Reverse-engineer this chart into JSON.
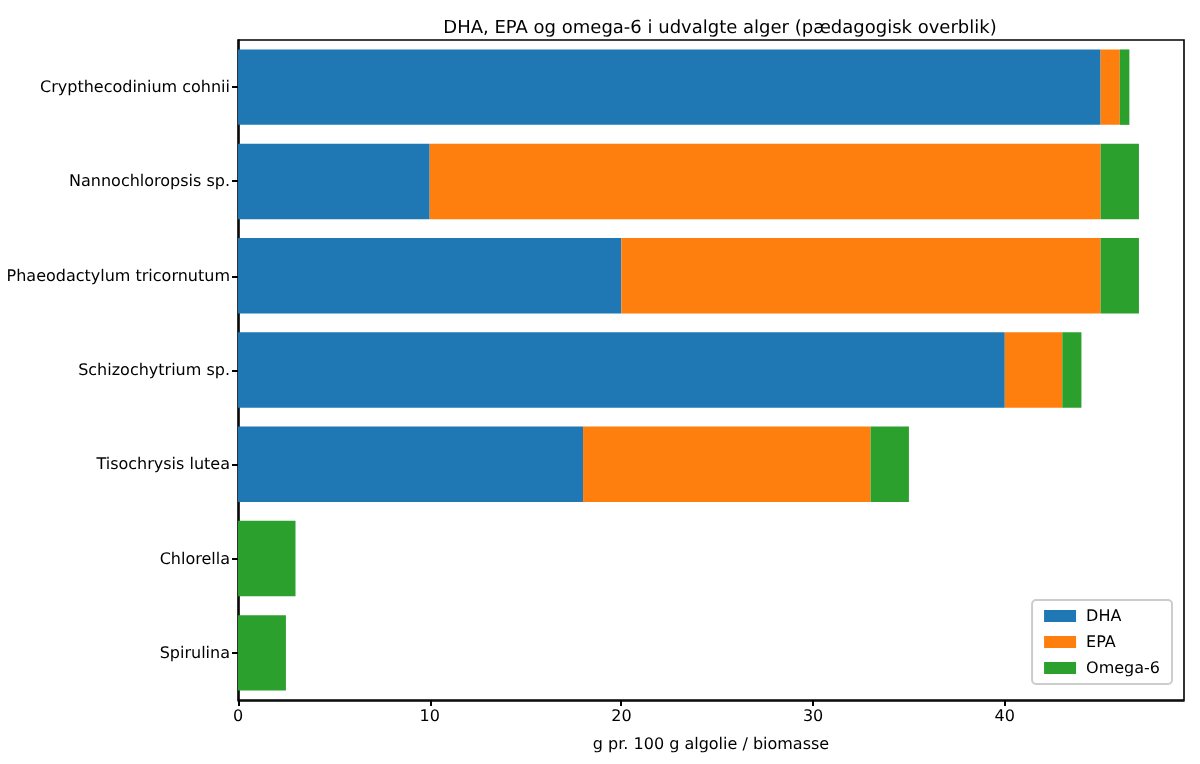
{
  "chart_data": {
    "type": "bar",
    "orientation": "horizontal",
    "stacked": true,
    "title": "DHA, EPA og omega-6 i udvalgte alger (pædagogisk overblik)",
    "xlabel": "g pr. 100 g algolie / biomasse",
    "categories": [
      "Crypthecodinium cohnii",
      "Nannochloropsis sp.",
      "Phaeodactylum tricornutum",
      "Schizochytrium sp.",
      "Tisochrysis lutea",
      "Chlorella",
      "Spirulina"
    ],
    "series": [
      {
        "name": "DHA",
        "color": "#1f77b4",
        "values": [
          45,
          10,
          20,
          40,
          18,
          0,
          0
        ]
      },
      {
        "name": "EPA",
        "color": "#ff7f0e",
        "values": [
          1,
          35,
          25,
          3,
          15,
          0,
          0
        ]
      },
      {
        "name": "Omega-6",
        "color": "#2ca02c",
        "values": [
          0.5,
          2,
          2,
          1,
          2,
          3,
          2.5
        ]
      }
    ],
    "xlim": [
      0,
      49.35
    ],
    "xticks": [
      0,
      10,
      20,
      30,
      40
    ],
    "grid": false,
    "legend": "bottom right"
  }
}
